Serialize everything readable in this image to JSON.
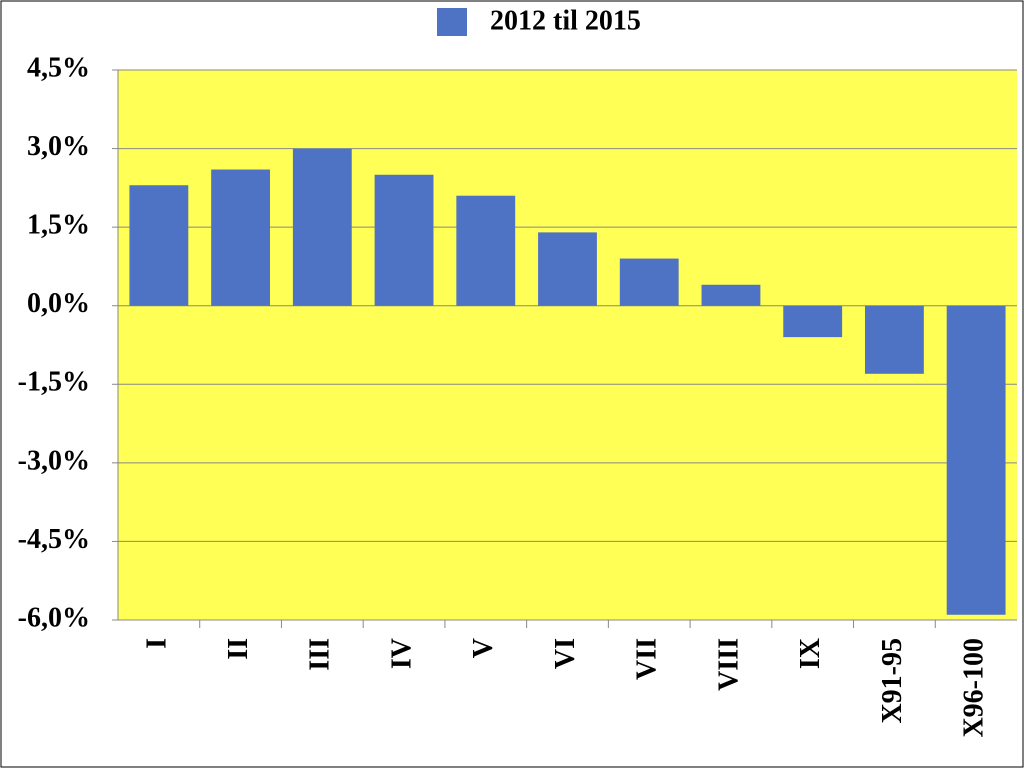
{
  "chart_data": {
    "type": "bar",
    "categories": [
      "I",
      "II",
      "III",
      "IV",
      "V",
      "VI",
      "VII",
      "VIII",
      "IX",
      "X91-95",
      "X96-100"
    ],
    "series": [
      {
        "name": "2012 til 2015",
        "color": "#4f73c4",
        "values": [
          2.3,
          2.6,
          3.0,
          2.5,
          2.1,
          1.4,
          0.9,
          0.4,
          -0.6,
          -1.3,
          -5.9
        ]
      }
    ],
    "ylim": [
      -6.0,
      4.5
    ],
    "yticks": [
      {
        "value": -6.0,
        "label": "-6,0%"
      },
      {
        "value": -4.5,
        "label": "-4,5%"
      },
      {
        "value": -3.0,
        "label": "-3,0%"
      },
      {
        "value": -1.5,
        "label": "-1,5%"
      },
      {
        "value": 0.0,
        "label": "0,0%"
      },
      {
        "value": 1.5,
        "label": "1,5%"
      },
      {
        "value": 3.0,
        "label": "3,0%"
      },
      {
        "value": 4.5,
        "label": "4,5%"
      }
    ],
    "grid": true,
    "legend": "top",
    "plot_background": "#ffff55"
  }
}
